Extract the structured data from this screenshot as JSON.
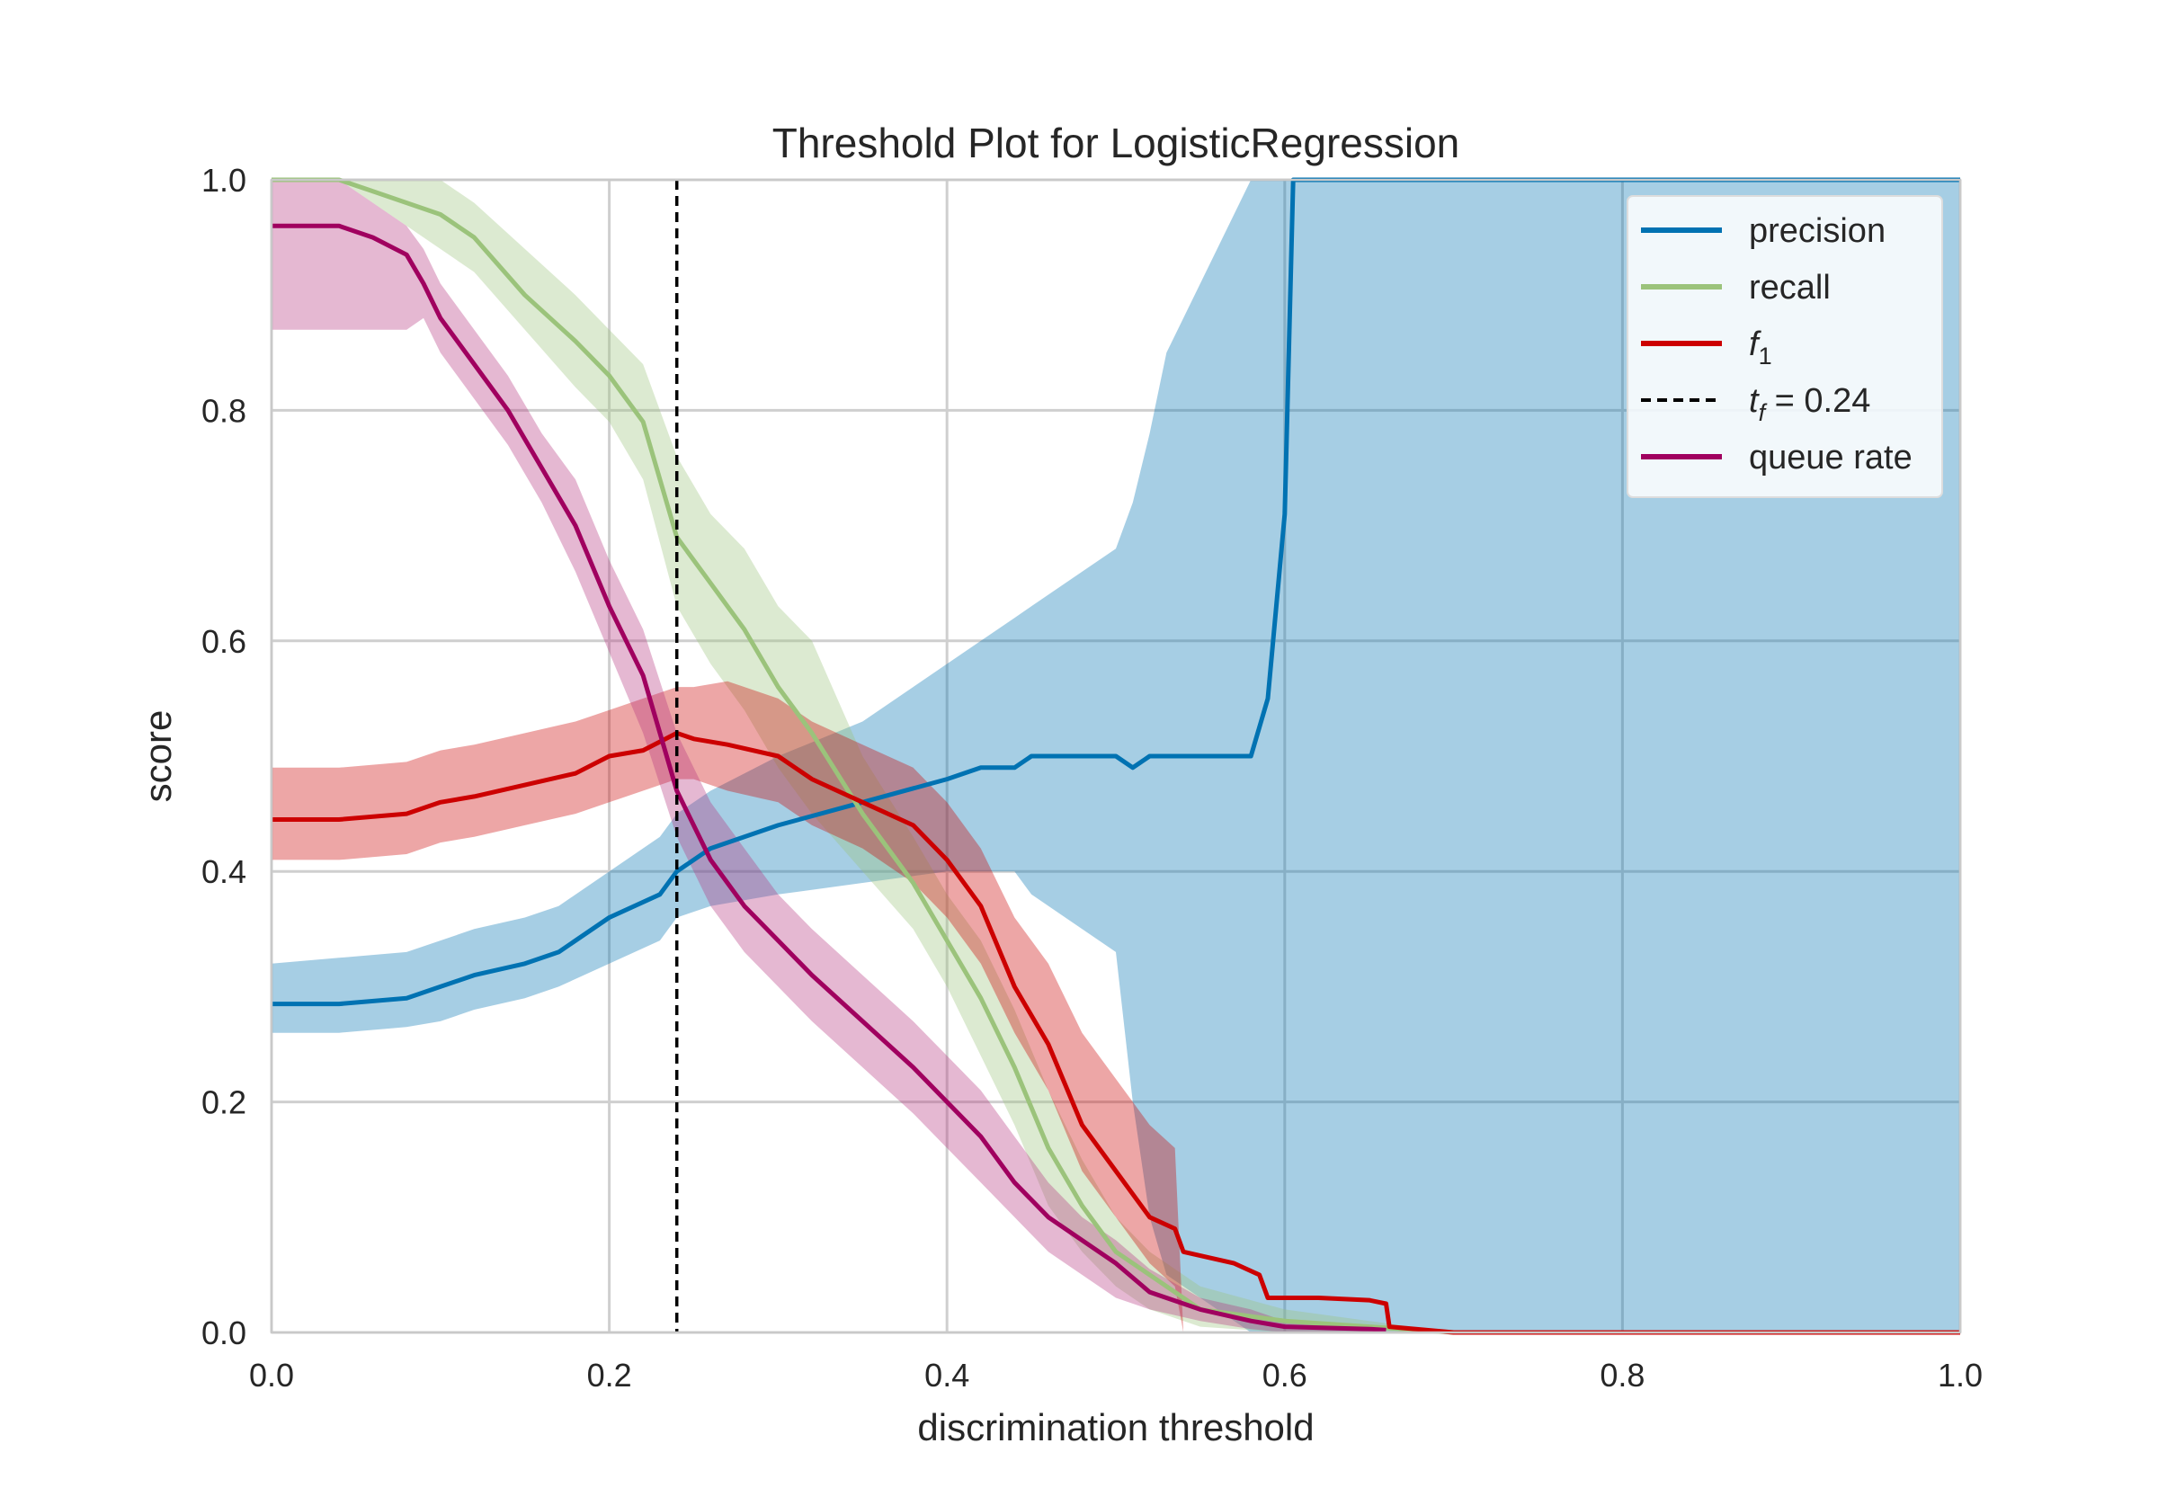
{
  "chart_data": {
    "type": "line",
    "title": "Threshold Plot for LogisticRegression",
    "xlabel": "discrimination threshold",
    "ylabel": "score",
    "xlim": [
      0.0,
      1.0
    ],
    "ylim": [
      0.0,
      1.0
    ],
    "xticks": [
      "0.0",
      "0.2",
      "0.4",
      "0.6",
      "0.8",
      "1.0"
    ],
    "yticks": [
      "0.0",
      "0.2",
      "0.4",
      "0.6",
      "0.8",
      "1.0"
    ],
    "grid": true,
    "legend_position": "top-right",
    "threshold_line": {
      "x": 0.24,
      "label_prefix": "t",
      "label_sub": "f",
      "label_value": "= 0.24",
      "color": "#000000"
    },
    "series": [
      {
        "name": "precision",
        "color": "#0072B2",
        "band_color": "#0072B2",
        "x": [
          0.0,
          0.04,
          0.08,
          0.1,
          0.12,
          0.15,
          0.17,
          0.2,
          0.23,
          0.24,
          0.26,
          0.3,
          0.35,
          0.4,
          0.42,
          0.44,
          0.45,
          0.5,
          0.51,
          0.52,
          0.53,
          0.58,
          0.59,
          0.6,
          0.605,
          0.7,
          1.0
        ],
        "y": [
          0.285,
          0.285,
          0.29,
          0.3,
          0.31,
          0.32,
          0.33,
          0.36,
          0.38,
          0.4,
          0.42,
          0.44,
          0.46,
          0.48,
          0.49,
          0.49,
          0.5,
          0.5,
          0.49,
          0.5,
          0.5,
          0.5,
          0.55,
          0.71,
          1.0,
          1.0,
          1.0
        ],
        "lo": [
          0.26,
          0.26,
          0.265,
          0.27,
          0.28,
          0.29,
          0.3,
          0.32,
          0.34,
          0.36,
          0.37,
          0.38,
          0.39,
          0.4,
          0.4,
          0.4,
          0.38,
          0.33,
          0.2,
          0.1,
          0.05,
          0.0,
          0.0,
          0.0,
          0.0,
          0.0,
          0.0
        ],
        "hi": [
          0.32,
          0.325,
          0.33,
          0.34,
          0.35,
          0.36,
          0.37,
          0.4,
          0.43,
          0.45,
          0.47,
          0.5,
          0.53,
          0.58,
          0.6,
          0.62,
          0.63,
          0.68,
          0.72,
          0.78,
          0.85,
          1.0,
          1.0,
          1.0,
          1.0,
          1.0,
          1.0
        ]
      },
      {
        "name": "recall",
        "color": "#9BC37B",
        "band_color": "#9BC37B",
        "x": [
          0.0,
          0.04,
          0.06,
          0.1,
          0.12,
          0.15,
          0.18,
          0.2,
          0.22,
          0.24,
          0.26,
          0.28,
          0.3,
          0.32,
          0.35,
          0.38,
          0.4,
          0.42,
          0.44,
          0.46,
          0.48,
          0.5,
          0.52,
          0.55,
          0.6,
          0.65,
          0.7
        ],
        "y": [
          1.0,
          1.0,
          0.99,
          0.97,
          0.95,
          0.9,
          0.86,
          0.83,
          0.79,
          0.69,
          0.65,
          0.61,
          0.56,
          0.52,
          0.45,
          0.39,
          0.34,
          0.29,
          0.23,
          0.16,
          0.11,
          0.07,
          0.05,
          0.02,
          0.01,
          0.005,
          0.0
        ],
        "lo": [
          1.0,
          1.0,
          0.98,
          0.94,
          0.92,
          0.87,
          0.82,
          0.79,
          0.74,
          0.63,
          0.58,
          0.54,
          0.49,
          0.45,
          0.4,
          0.35,
          0.3,
          0.24,
          0.18,
          0.11,
          0.07,
          0.04,
          0.02,
          0.005,
          0.0,
          0.0,
          0.0
        ],
        "hi": [
          1.0,
          1.0,
          1.0,
          1.0,
          0.98,
          0.94,
          0.9,
          0.87,
          0.84,
          0.76,
          0.71,
          0.68,
          0.63,
          0.6,
          0.5,
          0.43,
          0.38,
          0.34,
          0.28,
          0.21,
          0.15,
          0.1,
          0.07,
          0.04,
          0.02,
          0.01,
          0.0
        ]
      },
      {
        "name": "f1",
        "display_name": "f",
        "display_sub": "1",
        "color": "#CC0000",
        "band_color": "#CC0000",
        "x": [
          0.0,
          0.02,
          0.04,
          0.08,
          0.1,
          0.12,
          0.15,
          0.18,
          0.2,
          0.22,
          0.24,
          0.25,
          0.27,
          0.3,
          0.32,
          0.35,
          0.38,
          0.4,
          0.42,
          0.44,
          0.46,
          0.48,
          0.5,
          0.52,
          0.535,
          0.54,
          0.57,
          0.585,
          0.59,
          0.6,
          0.62,
          0.65,
          0.66,
          0.662,
          0.7,
          1.0
        ],
        "y": [
          0.445,
          0.445,
          0.445,
          0.45,
          0.46,
          0.465,
          0.475,
          0.485,
          0.5,
          0.505,
          0.52,
          0.515,
          0.51,
          0.5,
          0.48,
          0.46,
          0.44,
          0.41,
          0.37,
          0.3,
          0.25,
          0.18,
          0.14,
          0.1,
          0.09,
          0.07,
          0.06,
          0.05,
          0.03,
          0.03,
          0.03,
          0.028,
          0.025,
          0.005,
          0.0,
          0.0
        ],
        "lo": [
          0.41,
          0.41,
          0.41,
          0.415,
          0.425,
          0.43,
          0.44,
          0.45,
          0.46,
          0.47,
          0.48,
          0.48,
          0.47,
          0.46,
          0.44,
          0.42,
          0.39,
          0.36,
          0.32,
          0.26,
          0.21,
          0.14,
          0.1,
          0.06,
          0.04,
          0.0,
          0.0,
          0.0,
          0.0,
          0.0,
          0.0,
          0.0,
          0.0,
          0.0,
          0.0,
          0.0
        ],
        "hi": [
          0.49,
          0.49,
          0.49,
          0.495,
          0.505,
          0.51,
          0.52,
          0.53,
          0.54,
          0.55,
          0.56,
          0.56,
          0.565,
          0.55,
          0.53,
          0.51,
          0.49,
          0.46,
          0.42,
          0.36,
          0.32,
          0.26,
          0.22,
          0.18,
          0.16,
          0.0,
          0.0,
          0.0,
          0.0,
          0.0,
          0.0,
          0.0,
          0.0,
          0.0,
          0.0,
          0.0
        ]
      },
      {
        "name": "queue rate",
        "color": "#A0005F",
        "band_color": "#B5347F",
        "x": [
          0.0,
          0.04,
          0.06,
          0.08,
          0.09,
          0.1,
          0.12,
          0.14,
          0.16,
          0.18,
          0.2,
          0.22,
          0.24,
          0.26,
          0.28,
          0.3,
          0.32,
          0.35,
          0.38,
          0.4,
          0.42,
          0.44,
          0.46,
          0.48,
          0.5,
          0.52,
          0.55,
          0.58,
          0.6,
          0.65,
          0.66
        ],
        "y": [
          0.96,
          0.96,
          0.95,
          0.935,
          0.91,
          0.88,
          0.84,
          0.8,
          0.75,
          0.7,
          0.63,
          0.57,
          0.47,
          0.41,
          0.37,
          0.34,
          0.31,
          0.27,
          0.23,
          0.2,
          0.17,
          0.13,
          0.1,
          0.08,
          0.06,
          0.035,
          0.02,
          0.01,
          0.005,
          0.003,
          0.002
        ],
        "lo": [
          0.87,
          0.87,
          0.87,
          0.87,
          0.88,
          0.85,
          0.81,
          0.77,
          0.72,
          0.66,
          0.59,
          0.52,
          0.43,
          0.37,
          0.33,
          0.3,
          0.27,
          0.23,
          0.19,
          0.16,
          0.13,
          0.1,
          0.07,
          0.05,
          0.03,
          0.02,
          0.01,
          0.003,
          0.0,
          0.0,
          0.0
        ],
        "hi": [
          1.0,
          1.0,
          0.98,
          0.96,
          0.94,
          0.91,
          0.87,
          0.83,
          0.78,
          0.74,
          0.67,
          0.61,
          0.52,
          0.46,
          0.42,
          0.38,
          0.35,
          0.31,
          0.27,
          0.24,
          0.21,
          0.17,
          0.13,
          0.1,
          0.08,
          0.055,
          0.03,
          0.02,
          0.01,
          0.006,
          0.004
        ]
      }
    ]
  }
}
